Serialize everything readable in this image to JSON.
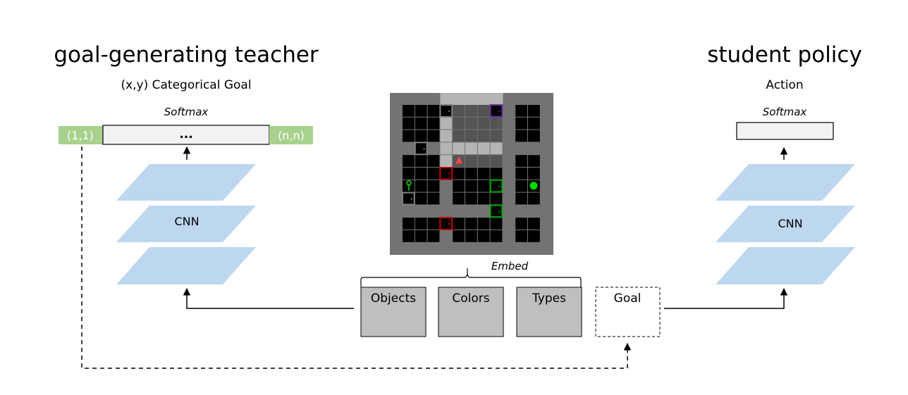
{
  "teacher": {
    "title": "goal-generating teacher",
    "subtitle": "(x,y) Categorical Goal",
    "softmax_label": "Softmax",
    "goal_first_cell": "(1,1)",
    "goal_ellipsis": "...",
    "goal_last_cell": "(n,n)",
    "cnn_label": "CNN"
  },
  "student": {
    "title": "student policy",
    "subtitle": "Action",
    "softmax_label": "Softmax",
    "cnn_label": "CNN"
  },
  "embed": {
    "label": "Embed",
    "inputs": [
      "Objects",
      "Colors",
      "Types"
    ],
    "goal_label": "Goal"
  },
  "colors": {
    "layer_fill": "#bdd7ee",
    "goal_bar_green": "#a9d18e",
    "input_box": "#bfbfbf",
    "grid_wall": "#737373",
    "grid_floor": "#000000",
    "grid_visible": "#aaaaaa",
    "agent": "#ff4545",
    "door_red": "#c00000",
    "door_green": "#00b000",
    "door_purple": "#7030a0",
    "door_grey": "#808080",
    "ball_green": "#00dd00"
  },
  "icons": [
    "agent-triangle-icon",
    "key-icon",
    "ball-icon",
    "door-icon"
  ]
}
